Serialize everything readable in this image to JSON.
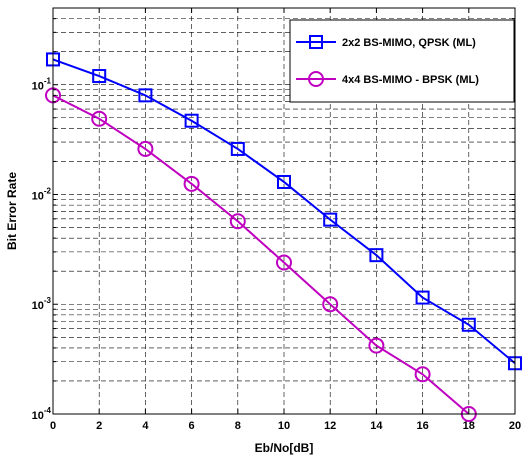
{
  "chart_data": {
    "type": "line",
    "xlabel": "Eb/No[dB]",
    "ylabel": "Bit Error Rate",
    "xlim": [
      0,
      20
    ],
    "ylim": [
      0.0001,
      0.5
    ],
    "yscale": "log",
    "grid": true,
    "legend_position": "top-right",
    "x_ticks": [
      0,
      2,
      4,
      6,
      8,
      10,
      12,
      14,
      16,
      18,
      20
    ],
    "x_tick_labels": [
      "0",
      "2",
      "4",
      "6",
      "8",
      "10",
      "12",
      "14",
      "16",
      "18",
      "20"
    ],
    "y_ticks": [
      {
        "value": 0.1,
        "base": "10",
        "exp": "-1"
      },
      {
        "value": 0.01,
        "base": "10",
        "exp": "-2"
      },
      {
        "value": 0.001,
        "base": "10",
        "exp": "-3"
      },
      {
        "value": 0.0001,
        "base": "10",
        "exp": "-4"
      }
    ],
    "series": [
      {
        "name": "2x2 BS-MIMO, QPSK (ML)",
        "color": "#0000ff",
        "marker": "square",
        "x": [
          0,
          2,
          4,
          6,
          8,
          10,
          12,
          14,
          16,
          18,
          20
        ],
        "y": [
          0.17,
          0.12,
          0.08,
          0.047,
          0.026,
          0.013,
          0.0059,
          0.0028,
          0.00115,
          0.00065,
          0.00029
        ]
      },
      {
        "name": "4x4 BS-MIMO - BPSK (ML)",
        "color": "#c000c0",
        "marker": "circle",
        "x": [
          0,
          2,
          4,
          6,
          8,
          10,
          12,
          14,
          16,
          18
        ],
        "y": [
          0.08,
          0.049,
          0.026,
          0.0125,
          0.0057,
          0.0024,
          0.001,
          0.00042,
          0.00023,
          0.0001
        ]
      }
    ]
  }
}
